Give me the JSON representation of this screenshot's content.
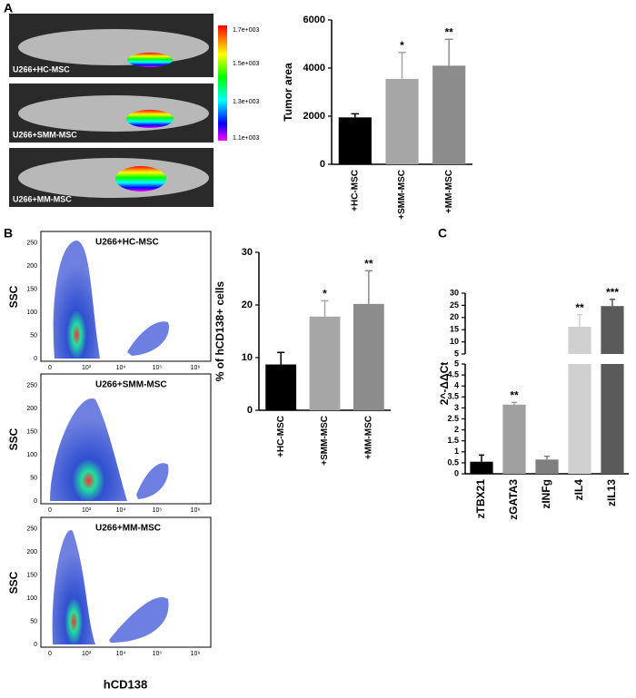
{
  "panels": [
    "A",
    "B",
    "C"
  ],
  "panel_a": {
    "images": [
      "U266+HC-MSC",
      "U266+SMM-MSC",
      "U266+MM-MSC"
    ],
    "colorbar": [
      "1.7e+003",
      "1.5e+003",
      "1.3e+003",
      "1.1e+003"
    ]
  },
  "panel_b": {
    "images": [
      "U266+HC-MSC",
      "U266+SMM-MSC",
      "U266+MM-MSC"
    ],
    "flow_yticks": [
      0,
      50,
      100,
      150,
      200,
      250
    ],
    "flow_xticks": [
      "0",
      "10³",
      "10⁴",
      "10⁵",
      "10⁶"
    ],
    "y_label": "SSC",
    "x_label": "hCD138"
  },
  "chart_data": [
    {
      "type": "bar",
      "y_label": "Tumor area",
      "categories": [
        "+HC-MSC",
        "+SMM-MSC",
        "+MM-MSC"
      ],
      "values": [
        1950,
        3550,
        4100
      ],
      "errors": [
        150,
        1100,
        1100
      ],
      "significance": [
        null,
        "*",
        "**"
      ],
      "colors": [
        "#000000",
        "#a6a6a6",
        "#8c8c8c"
      ],
      "ylim": [
        0,
        6000
      ],
      "yticks": [
        0,
        2000,
        4000,
        6000
      ]
    },
    {
      "type": "bar",
      "y_label": "% of hCD138+ cells",
      "categories": [
        "+HC-MSC",
        "+SMM-MSC",
        "+MM-MSC"
      ],
      "values": [
        8.7,
        17.8,
        20.2
      ],
      "errors": [
        2.3,
        3,
        6.3
      ],
      "significance": [
        null,
        "*",
        "**"
      ],
      "colors": [
        "#000000",
        "#a6a6a6",
        "#8c8c8c"
      ],
      "ylim": [
        0,
        30
      ],
      "yticks": [
        0,
        10,
        20,
        30
      ]
    },
    {
      "type": "bar",
      "y_label": "2^-ΔΔCt",
      "categories": [
        "zTBX21",
        "zGATA3",
        "zINFg",
        "zIL4",
        "zIL13"
      ],
      "values": [
        0.55,
        3.15,
        0.65,
        16.2,
        24.7
      ],
      "errors": [
        0.3,
        0.1,
        0.15,
        5,
        2.8
      ],
      "significance": [
        null,
        "**",
        null,
        "**",
        "***"
      ],
      "colors": [
        "#000000",
        "#a0a0a0",
        "#7f7f7f",
        "#d0d0d0",
        "#5a5a5a"
      ],
      "ylim_lower": [
        0,
        5
      ],
      "yticks_lower": [
        0,
        0.5,
        1,
        1.5,
        2,
        2.5,
        3,
        3.5,
        4,
        4.5,
        5
      ],
      "ylim_upper": [
        5,
        30
      ],
      "yticks_upper": [
        5,
        10,
        15,
        20,
        25,
        30
      ]
    }
  ]
}
